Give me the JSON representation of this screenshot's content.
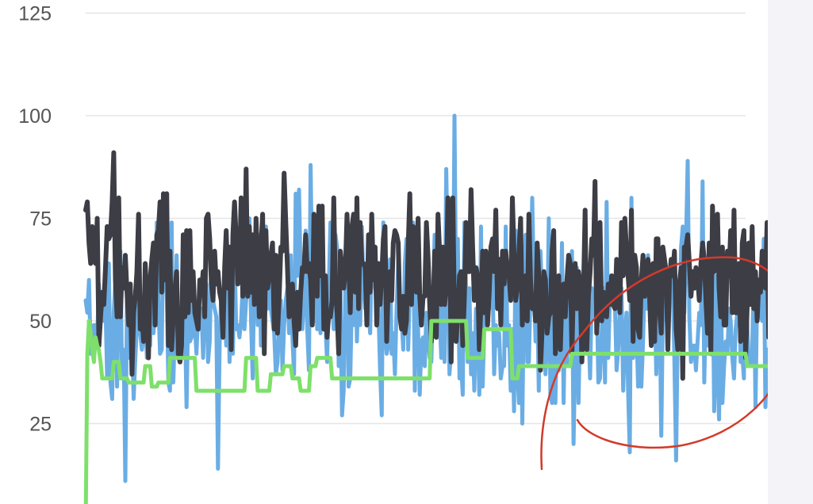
{
  "colors": {
    "background": "#ffffff",
    "side_panel": "#f3f3f8",
    "grid": "#e6e6e6",
    "annotation": "#d23a2a"
  },
  "chart_data": {
    "type": "line",
    "title": "",
    "xlabel": "",
    "ylabel": "",
    "ylim": [
      0,
      125
    ],
    "yticks": [
      25,
      50,
      75,
      100,
      125
    ],
    "grid": true,
    "legend": "none",
    "x": {
      "start": 0,
      "end": 399,
      "step": 1
    },
    "series": [
      {
        "color": "#6aade4",
        "stroke": 5,
        "values": [
          55,
          52,
          60,
          42,
          45,
          49,
          49,
          46,
          59,
          52,
          56,
          50,
          54,
          36,
          64,
          35,
          31,
          52,
          60,
          34,
          57,
          67,
          36,
          43,
          11,
          56,
          41,
          57,
          48,
          31,
          41,
          49,
          60,
          47,
          43,
          47,
          52,
          41,
          57,
          44,
          64,
          47,
          53,
          74,
          54,
          42,
          43,
          74,
          58,
          57,
          35,
          33,
          74,
          35,
          49,
          66,
          46,
          49,
          41,
          52,
          51,
          29,
          54,
          45,
          46,
          59,
          49,
          42,
          52,
          51,
          53,
          41,
          55,
          59,
          40,
          45,
          65,
          55,
          53,
          51,
          14,
          44,
          57,
          54,
          55,
          44,
          65,
          40,
          56,
          42,
          67,
          48,
          49,
          46,
          50,
          59,
          48,
          55,
          63,
          75,
          50,
          36,
          64,
          63,
          49,
          71,
          44,
          53,
          59,
          73,
          53,
          64,
          53,
          50,
          47,
          37,
          40,
          49,
          55,
          38,
          49,
          55,
          58,
          47,
          66,
          46,
          37,
          81,
          61,
          82,
          61,
          48,
          55,
          72,
          48,
          38,
          88,
          59,
          50,
          68,
          48,
          56,
          47,
          68,
          51,
          49,
          40,
          58,
          74,
          54,
          48,
          71,
          68,
          39,
          58,
          27,
          33,
          58,
          73,
          34,
          36,
          56,
          49,
          70,
          45,
          60,
          49,
          73,
          59,
          53,
          62,
          52,
          47,
          69,
          61,
          58,
          56,
          53,
          38,
          27,
          74,
          48,
          42,
          44,
          65,
          42,
          47,
          37,
          53,
          64,
          53,
          51,
          43,
          64,
          70,
          43,
          58,
          63,
          74,
          33,
          73,
          48,
          32,
          45,
          46,
          39,
          52,
          46,
          41,
          40,
          55,
          71,
          59,
          65,
          52,
          41,
          62,
          40,
          87,
          63,
          37,
          43,
          46,
          100,
          53,
          70,
          36,
          40,
          32,
          74,
          58,
          40,
          58,
          37,
          47,
          33,
          53,
          49,
          32,
          73,
          34,
          48,
          57,
          52,
          53,
          62,
          61,
          37,
          49,
          44,
          47,
          36,
          39,
          39,
          73,
          44,
          49,
          33,
          48,
          28,
          72,
          38,
          30,
          63,
          25,
          57,
          71,
          40,
          40,
          58,
          80,
          59,
          45,
          56,
          33,
          67,
          55,
          52,
          37,
          46,
          75,
          32,
          30,
          59,
          30,
          51,
          38,
          46,
          69,
          30,
          57,
          39,
          55,
          44,
          67,
          20,
          42,
          63,
          30,
          52,
          47,
          50,
          51,
          63,
          48,
          36,
          58,
          54,
          51,
          57,
          35,
          36,
          47,
          58,
          35,
          79,
          41,
          57,
          56,
          61,
          54,
          38,
          43,
          53,
          58,
          33,
          46,
          52,
          33,
          18,
          80,
          41,
          45,
          49,
          34,
          46,
          34,
          45,
          60,
          53,
          66,
          56,
          58,
          49,
          57,
          37,
          53,
          56,
          22,
          52,
          64,
          50,
          51,
          56,
          64,
          58,
          40,
          16,
          49,
          52,
          68,
          73,
          52,
          69,
          89,
          51,
          40,
          44,
          44,
          38,
          45,
          52,
          49,
          84,
          35,
          55,
          44,
          56,
          44,
          68,
          28,
          61,
          38,
          26,
          64,
          30,
          39,
          45,
          42,
          53,
          50,
          41,
          36,
          48,
          52,
          63,
          40,
          42,
          36,
          69,
          49,
          39,
          39,
          42,
          64,
          29,
          57,
          57,
          52,
          50,
          70,
          29,
          43,
          36,
          53,
          43,
          66,
          56,
          45,
          57,
          54,
          60,
          61,
          65,
          48,
          31
        ]
      },
      {
        "color": "#3d3d45",
        "stroke": 6,
        "values": [
          77,
          79,
          69,
          64,
          73,
          65,
          64,
          75,
          44,
          51,
          57,
          54,
          63,
          73,
          70,
          71,
          79,
          91,
          60,
          51,
          80,
          51,
          63,
          58,
          66,
          57,
          49,
          59,
          37,
          52,
          56,
          62,
          76,
          48,
          52,
          45,
          64,
          55,
          41,
          60,
          65,
          69,
          49,
          71,
          72,
          79,
          57,
          81,
          60,
          81,
          44,
          67,
          43,
          51,
          58,
          62,
          42,
          40,
          44,
          71,
          51,
          72,
          52,
          72,
          55,
          62,
          52,
          50,
          48,
          60,
          57,
          62,
          51,
          75,
          76,
          70,
          59,
          55,
          67,
          59,
          62,
          57,
          55,
          46,
          63,
          72,
          58,
          68,
          43,
          71,
          79,
          70,
          59,
          62,
          80,
          56,
          61,
          87,
          56,
          73,
          57,
          71,
          54,
          75,
          64,
          51,
          68,
          76,
          42,
          72,
          58,
          61,
          66,
          69,
          48,
          66,
          47,
          56,
          68,
          67,
          86,
          74,
          63,
          51,
          54,
          59,
          50,
          44,
          57,
          48,
          57,
          63,
          62,
          71,
          62,
          64,
          60,
          49,
          76,
          57,
          56,
          78,
          61,
          78,
          48,
          61,
          46,
          52,
          51,
          55,
          80,
          57,
          52,
          42,
          67,
          63,
          58,
          62,
          76,
          65,
          52,
          73,
          76,
          57,
          80,
          53,
          74,
          64,
          64,
          63,
          49,
          71,
          57,
          76,
          60,
          68,
          49,
          64,
          54,
          61,
          70,
          73,
          45,
          59,
          62,
          55,
          69,
          72,
          71,
          69,
          51,
          48,
          56,
          47,
          50,
          68,
          81,
          54,
          73,
          61,
          57,
          75,
          56,
          49,
          56,
          56,
          74,
          66,
          54,
          45,
          50,
          67,
          46,
          76,
          67,
          54,
          68,
          54,
          58,
          80,
          73,
          40,
          80,
          51,
          45,
          52,
          61,
          62,
          44,
          56,
          74,
          62,
          62,
          82,
          68,
          55,
          63,
          61,
          43,
          54,
          67,
          52,
          67,
          49,
          57,
          68,
          70,
          62,
          77,
          53,
          65,
          49,
          67,
          59,
          67,
          62,
          61,
          55,
          80,
          66,
          55,
          58,
          67,
          75,
          49,
          59,
          61,
          50,
          76,
          60,
          53,
          56,
          50,
          69,
          61,
          38,
          48,
          62,
          60,
          47,
          51,
          52,
          67,
          72,
          42,
          55,
          61,
          43,
          57,
          59,
          51,
          60,
          66,
          64,
          42,
          60,
          64,
          53,
          62,
          59,
          40,
          57,
          77,
          43,
          56,
          62,
          70,
          66,
          84,
          47,
          55,
          74,
          50,
          57,
          53,
          51,
          59,
          54,
          61,
          54,
          53,
          65,
          57,
          52,
          74,
          61,
          75,
          67,
          61,
          55,
          77,
          45,
          66,
          63,
          48,
          46,
          60,
          66,
          56,
          60,
          65,
          55,
          44,
          64,
          45,
          70,
          70,
          52,
          47,
          68,
          65,
          62,
          43,
          60,
          65,
          61,
          67,
          48,
          43,
          59,
          63,
          36,
          68,
          68,
          71,
          64,
          56,
          62,
          58,
          63,
          61,
          55,
          64,
          69,
          65,
          55,
          47,
          69,
          42,
          78,
          62,
          75,
          76,
          58,
          51,
          68,
          49,
          49,
          67,
          61,
          72,
          52,
          77,
          52,
          52,
          64,
          45,
          69,
          72,
          41,
          54,
          69,
          54,
          73,
          53,
          62,
          50,
          60,
          57,
          67,
          62,
          58,
          74,
          46
        ]
      },
      {
        "color": "#7ee06a",
        "stroke": 5,
        "values": [
          0,
          42,
          50,
          47,
          43,
          40,
          46,
          44,
          43,
          40,
          36,
          36,
          36,
          36,
          36,
          36,
          36,
          40,
          40,
          40,
          40,
          36,
          36,
          36,
          36,
          36,
          35,
          35,
          35,
          35,
          35,
          35,
          35,
          35,
          35,
          35,
          39,
          39,
          39,
          39,
          34,
          34,
          34,
          34,
          35,
          35,
          35,
          35,
          35,
          35,
          35,
          41,
          41,
          41,
          41,
          41,
          41,
          41,
          41,
          41,
          41,
          41,
          41,
          41,
          41,
          41,
          41,
          33,
          33,
          33,
          33,
          33,
          33,
          33,
          33,
          33,
          33,
          33,
          33,
          33,
          33,
          33,
          33,
          33,
          33,
          33,
          33,
          33,
          33,
          33,
          33,
          33,
          33,
          33,
          33,
          33,
          33,
          41,
          41,
          41,
          41,
          41,
          41,
          41,
          33,
          33,
          33,
          33,
          33,
          33,
          33,
          33,
          37,
          37,
          37,
          37,
          37,
          37,
          37,
          37,
          39,
          39,
          39,
          39,
          39,
          36,
          36,
          36,
          36,
          36,
          33,
          33,
          33,
          33,
          33,
          33,
          39,
          39,
          39,
          39,
          41,
          41,
          41,
          41,
          41,
          41,
          41,
          41,
          41,
          36,
          36,
          36,
          36,
          36,
          36,
          36,
          36,
          36,
          36,
          36,
          36,
          36,
          36,
          36,
          36,
          36,
          36,
          36,
          36,
          36,
          36,
          36,
          36,
          36,
          36,
          36,
          36,
          36,
          36,
          36,
          36,
          36,
          36,
          36,
          36,
          36,
          36,
          36,
          36,
          36,
          36,
          36,
          36,
          36,
          36,
          36,
          36,
          36,
          36,
          36,
          36,
          36,
          36,
          36,
          36,
          36,
          36,
          36,
          36,
          50,
          50,
          50,
          50,
          50,
          50,
          50,
          50,
          50,
          50,
          50,
          50,
          50,
          50,
          50,
          50,
          50,
          50,
          50,
          50,
          50,
          50,
          41,
          41,
          41,
          41,
          41,
          41,
          41,
          41,
          41,
          41,
          48,
          48,
          48,
          48,
          48,
          48,
          48,
          48,
          48,
          48,
          48,
          48,
          48,
          48,
          48,
          48,
          48,
          36,
          36,
          36,
          36,
          39,
          39,
          39,
          39,
          39,
          39,
          39,
          39,
          39,
          39,
          39,
          39,
          39,
          39,
          39,
          39,
          39,
          39,
          39,
          39,
          39,
          39,
          39,
          39,
          39,
          39,
          39,
          39,
          39,
          39,
          39,
          39,
          42,
          42,
          42,
          42,
          42,
          42,
          42,
          42,
          42,
          42,
          42,
          42,
          42,
          42,
          42,
          42,
          42,
          42,
          42,
          42,
          42,
          42,
          42,
          42,
          42,
          42,
          42,
          42,
          42,
          42,
          42,
          42,
          42,
          42,
          42,
          42,
          42,
          42,
          42,
          42,
          42,
          42,
          42,
          42,
          42,
          42,
          42,
          42,
          42,
          42,
          42,
          42,
          42,
          42,
          42,
          42,
          42,
          42,
          42,
          42,
          42,
          42,
          42,
          42,
          42,
          42,
          42,
          42,
          42,
          42,
          42,
          42,
          42,
          42,
          42,
          42,
          42,
          42,
          42,
          42,
          42,
          42,
          42,
          42,
          42,
          42,
          42,
          42,
          42,
          42,
          42,
          42,
          42,
          42,
          42,
          42,
          42,
          42,
          42,
          42,
          42,
          42,
          42,
          42,
          42,
          42,
          39,
          39,
          39,
          39,
          39,
          39,
          39,
          39,
          39,
          39,
          39,
          39,
          39,
          39,
          39,
          39
        ]
      }
    ]
  }
}
